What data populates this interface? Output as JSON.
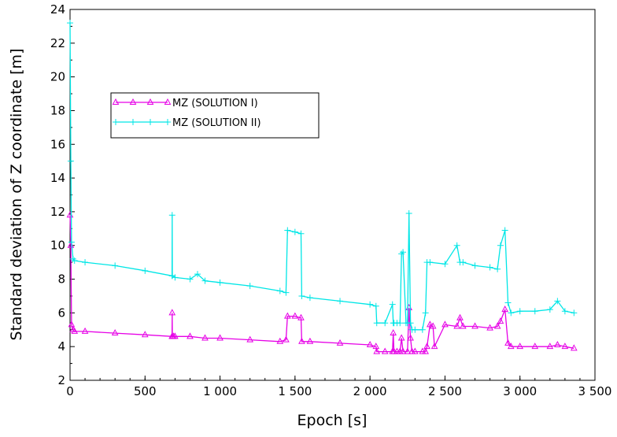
{
  "chart_data": {
    "type": "line",
    "xlabel": "Epoch [s]",
    "ylabel": "Standard deviation of Z coordinate [m]",
    "xlim": [
      0,
      3500
    ],
    "ylim": [
      2,
      24
    ],
    "x_ticks": [
      0,
      500,
      1000,
      1500,
      2000,
      2500,
      3000,
      3500
    ],
    "x_tick_labels": [
      "0",
      "500",
      "1 000",
      "1 500",
      "2 000",
      "2 500",
      "3 000",
      "3 500"
    ],
    "y_ticks": [
      2,
      4,
      6,
      8,
      10,
      12,
      14,
      16,
      18,
      20,
      22,
      24
    ],
    "y_tick_labels": [
      "2",
      "4",
      "6",
      "8",
      "10",
      "12",
      "14",
      "16",
      "18",
      "20",
      "22",
      "24"
    ],
    "grid": false,
    "legend_position": "upper-left",
    "series": [
      {
        "name": "MZ (SOLUTION I)",
        "color": "#e600e6",
        "marker": "triangle",
        "x": [
          0,
          5,
          10,
          20,
          30,
          100,
          300,
          500,
          680,
          681,
          682,
          690,
          700,
          800,
          900,
          1000,
          1200,
          1400,
          1440,
          1450,
          1500,
          1540,
          1545,
          1600,
          1800,
          2000,
          2040,
          2045,
          2100,
          2150,
          2155,
          2160,
          2180,
          2200,
          2210,
          2220,
          2250,
          2260,
          2270,
          2280,
          2300,
          2350,
          2370,
          2380,
          2400,
          2420,
          2430,
          2500,
          2580,
          2600,
          2620,
          2700,
          2800,
          2850,
          2870,
          2900,
          2920,
          2940,
          3000,
          3100,
          3200,
          3250,
          3300,
          3360
        ],
        "y": [
          11.8,
          10.0,
          5.3,
          5.0,
          4.9,
          4.9,
          4.8,
          4.7,
          4.6,
          6.0,
          4.6,
          4.6,
          4.6,
          4.6,
          4.5,
          4.5,
          4.4,
          4.3,
          4.4,
          5.8,
          5.8,
          5.7,
          4.3,
          4.3,
          4.2,
          4.1,
          4.0,
          3.7,
          3.7,
          3.7,
          4.8,
          3.7,
          3.7,
          3.7,
          4.5,
          3.7,
          3.7,
          6.3,
          4.5,
          3.7,
          3.7,
          3.7,
          3.7,
          4.0,
          5.3,
          5.2,
          4.0,
          5.3,
          5.2,
          5.7,
          5.2,
          5.2,
          5.1,
          5.2,
          5.5,
          6.2,
          4.2,
          4.0,
          4.0,
          4.0,
          4.0,
          4.1,
          4.0,
          3.9
        ]
      },
      {
        "name": "MZ (SOLUTION II)",
        "color": "#00e6e6",
        "marker": "plus",
        "x": [
          0,
          5,
          10,
          20,
          30,
          100,
          300,
          500,
          680,
          681,
          682,
          700,
          800,
          850,
          900,
          1000,
          1200,
          1400,
          1440,
          1450,
          1500,
          1540,
          1545,
          1600,
          1800,
          2000,
          2040,
          2045,
          2100,
          2150,
          2155,
          2160,
          2180,
          2200,
          2210,
          2220,
          2240,
          2250,
          2260,
          2270,
          2280,
          2300,
          2350,
          2370,
          2380,
          2400,
          2500,
          2580,
          2600,
          2620,
          2700,
          2800,
          2850,
          2870,
          2900,
          2920,
          2940,
          3000,
          3100,
          3200,
          3250,
          3300,
          3360
        ],
        "y": [
          23.2,
          15.0,
          10.2,
          9.2,
          9.1,
          9.0,
          8.8,
          8.5,
          8.2,
          11.8,
          8.2,
          8.1,
          8.0,
          8.3,
          7.9,
          7.8,
          7.6,
          7.3,
          7.2,
          10.9,
          10.8,
          10.7,
          7.0,
          6.9,
          6.7,
          6.5,
          6.4,
          5.4,
          5.4,
          6.5,
          5.4,
          5.4,
          5.4,
          5.4,
          9.5,
          9.6,
          5.4,
          5.4,
          11.9,
          5.4,
          5.0,
          5.0,
          5.0,
          6.0,
          9.0,
          9.0,
          8.9,
          10.0,
          9.0,
          9.0,
          8.8,
          8.7,
          8.6,
          10.0,
          10.9,
          6.6,
          6.0,
          6.1,
          6.1,
          6.2,
          6.7,
          6.1,
          6.0
        ]
      }
    ]
  }
}
